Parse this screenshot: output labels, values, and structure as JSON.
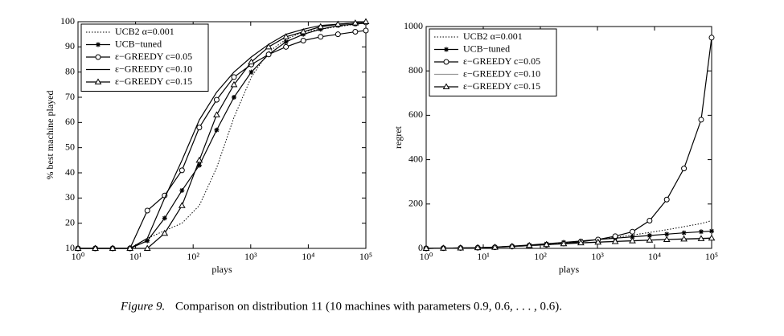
{
  "chart_data": [
    {
      "type": "line",
      "xscale": "log",
      "legend": "upper left",
      "xlabel": "plays",
      "ylabel": "% best machine played",
      "x": [
        1,
        2,
        4,
        8,
        16,
        32,
        64,
        128,
        256,
        512,
        1024,
        2048,
        4096,
        8192,
        16384,
        32768,
        65536,
        100000
      ],
      "xlim": [
        1,
        100000
      ],
      "xticks": [
        {
          "value": 1,
          "label": "10⁰"
        },
        {
          "value": 10,
          "label": "10¹"
        },
        {
          "value": 100,
          "label": "10²"
        },
        {
          "value": 1000,
          "label": "10³"
        },
        {
          "value": 10000,
          "label": "10⁴"
        },
        {
          "value": 100000,
          "label": "10⁵"
        }
      ],
      "ylim": [
        10,
        100
      ],
      "yticks": [
        10,
        20,
        30,
        40,
        50,
        60,
        70,
        80,
        90,
        100
      ],
      "series": [
        {
          "name": "UCB2 α=0.001",
          "color": "#000000",
          "dash": "dotted",
          "marker": "none",
          "values": [
            10,
            10,
            10,
            10,
            14,
            17,
            20,
            27,
            42,
            62,
            78,
            88,
            93,
            96,
            97,
            98,
            99,
            99.5
          ]
        },
        {
          "name": "UCB−tuned",
          "color": "#000000",
          "dash": "solid",
          "marker": "star",
          "values": [
            10,
            10,
            10,
            10,
            13,
            22,
            33,
            43,
            57,
            70,
            80,
            87,
            92,
            95,
            97,
            98.5,
            99,
            99.5
          ]
        },
        {
          "name": "ε−GREEDY c=0.05",
          "color": "#000000",
          "dash": "solid",
          "marker": "circle",
          "values": [
            10,
            10,
            10,
            10,
            25,
            31,
            41,
            58,
            69,
            78,
            83,
            87,
            90,
            92.5,
            94,
            95,
            96,
            96.5
          ]
        },
        {
          "name": "ε−GREEDY c=0.10",
          "color": "#000000",
          "dash": "solid",
          "marker": "none",
          "values": [
            10,
            10,
            10,
            10,
            14,
            30,
            45,
            61,
            72,
            80,
            86,
            91,
            95,
            97,
            98.5,
            99,
            99.5,
            100
          ]
        },
        {
          "name": "ε−GREEDY c=0.15",
          "color": "#000000",
          "dash": "solid",
          "marker": "triangle",
          "values": [
            10,
            10,
            10,
            10,
            10,
            16,
            27,
            45,
            63,
            75,
            84,
            90,
            94,
            96,
            98,
            99,
            99.5,
            100
          ]
        }
      ]
    },
    {
      "type": "line",
      "xscale": "log",
      "legend": "upper left",
      "xlabel": "plays",
      "ylabel": "regret",
      "x": [
        1,
        2,
        4,
        8,
        16,
        32,
        64,
        128,
        256,
        512,
        1024,
        2048,
        4096,
        8192,
        16384,
        32768,
        65536,
        100000
      ],
      "xlim": [
        1,
        100000
      ],
      "xticks": [
        {
          "value": 1,
          "label": "10⁰"
        },
        {
          "value": 10,
          "label": "10¹"
        },
        {
          "value": 100,
          "label": "10²"
        },
        {
          "value": 1000,
          "label": "10³"
        },
        {
          "value": 10000,
          "label": "10⁴"
        },
        {
          "value": 100000,
          "label": "10⁵"
        }
      ],
      "ylim": [
        0,
        1000
      ],
      "yticks": [
        0,
        200,
        400,
        600,
        800,
        1000
      ],
      "series": [
        {
          "name": "UCB2 α=0.001",
          "color": "#000000",
          "dash": "dotted",
          "marker": "none",
          "values": [
            0,
            1,
            2,
            4,
            6,
            10,
            14,
            19,
            25,
            32,
            40,
            50,
            60,
            72,
            84,
            98,
            112,
            125
          ]
        },
        {
          "name": "UCB−tuned",
          "color": "#000000",
          "dash": "solid",
          "marker": "star",
          "values": [
            0,
            1,
            2,
            3,
            6,
            10,
            15,
            21,
            27,
            33,
            40,
            46,
            52,
            58,
            64,
            70,
            75,
            78
          ]
        },
        {
          "name": "ε−GREEDY c=0.05",
          "color": "#000000",
          "dash": "solid",
          "marker": "circle",
          "values": [
            0,
            1,
            2,
            3,
            5,
            8,
            12,
            16,
            22,
            30,
            40,
            55,
            75,
            125,
            220,
            360,
            580,
            950
          ]
        },
        {
          "name": "ε−GREEDY c=0.10",
          "color": "#999999",
          "dash": "solid",
          "marker": "none",
          "values": [
            0,
            1,
            2,
            3,
            5,
            8,
            12,
            16,
            20,
            24,
            28,
            32,
            35,
            38,
            41,
            43,
            46,
            48
          ]
        },
        {
          "name": "ε−GREEDY c=0.15",
          "color": "#000000",
          "dash": "solid",
          "marker": "triangle",
          "values": [
            0,
            1,
            2,
            3,
            5,
            9,
            13,
            17,
            21,
            25,
            28,
            31,
            34,
            37,
            40,
            42,
            44,
            46
          ]
        }
      ]
    }
  ],
  "caption": {
    "label": "Figure 9.",
    "text": "Comparison on distribution 11 (10 machines with parameters 0.9, 0.6, . . . , 0.6)."
  }
}
